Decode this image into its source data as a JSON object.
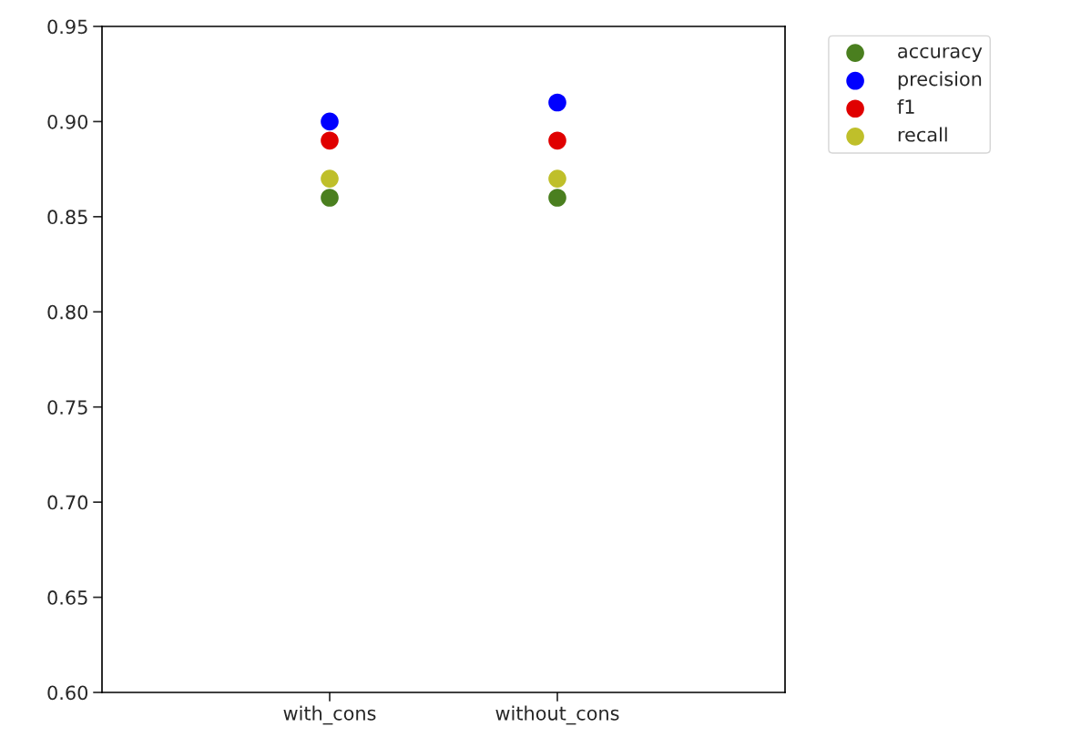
{
  "chart_data": {
    "type": "scatter",
    "categories": [
      "with_cons",
      "without_cons"
    ],
    "series": [
      {
        "name": "accuracy",
        "color": "#4a7f1f",
        "values": [
          0.86,
          0.86
        ]
      },
      {
        "name": "precision",
        "color": "#0000ff",
        "values": [
          0.9,
          0.91
        ]
      },
      {
        "name": "f1",
        "color": "#e00000",
        "values": [
          0.89,
          0.89
        ]
      },
      {
        "name": "recall",
        "color": "#bfbf2a",
        "values": [
          0.87,
          0.87
        ]
      }
    ],
    "ylim": [
      0.6,
      0.95
    ],
    "yticks": [
      {
        "value": 0.6,
        "label": "0.60"
      },
      {
        "value": 0.65,
        "label": "0.65"
      },
      {
        "value": 0.7,
        "label": "0.70"
      },
      {
        "value": 0.75,
        "label": "0.75"
      },
      {
        "value": 0.8,
        "label": "0.80"
      },
      {
        "value": 0.85,
        "label": "0.85"
      },
      {
        "value": 0.9,
        "label": "0.90"
      },
      {
        "value": 0.95,
        "label": "0.95"
      }
    ],
    "marker": "circle",
    "legend": "top right",
    "grid": false
  }
}
